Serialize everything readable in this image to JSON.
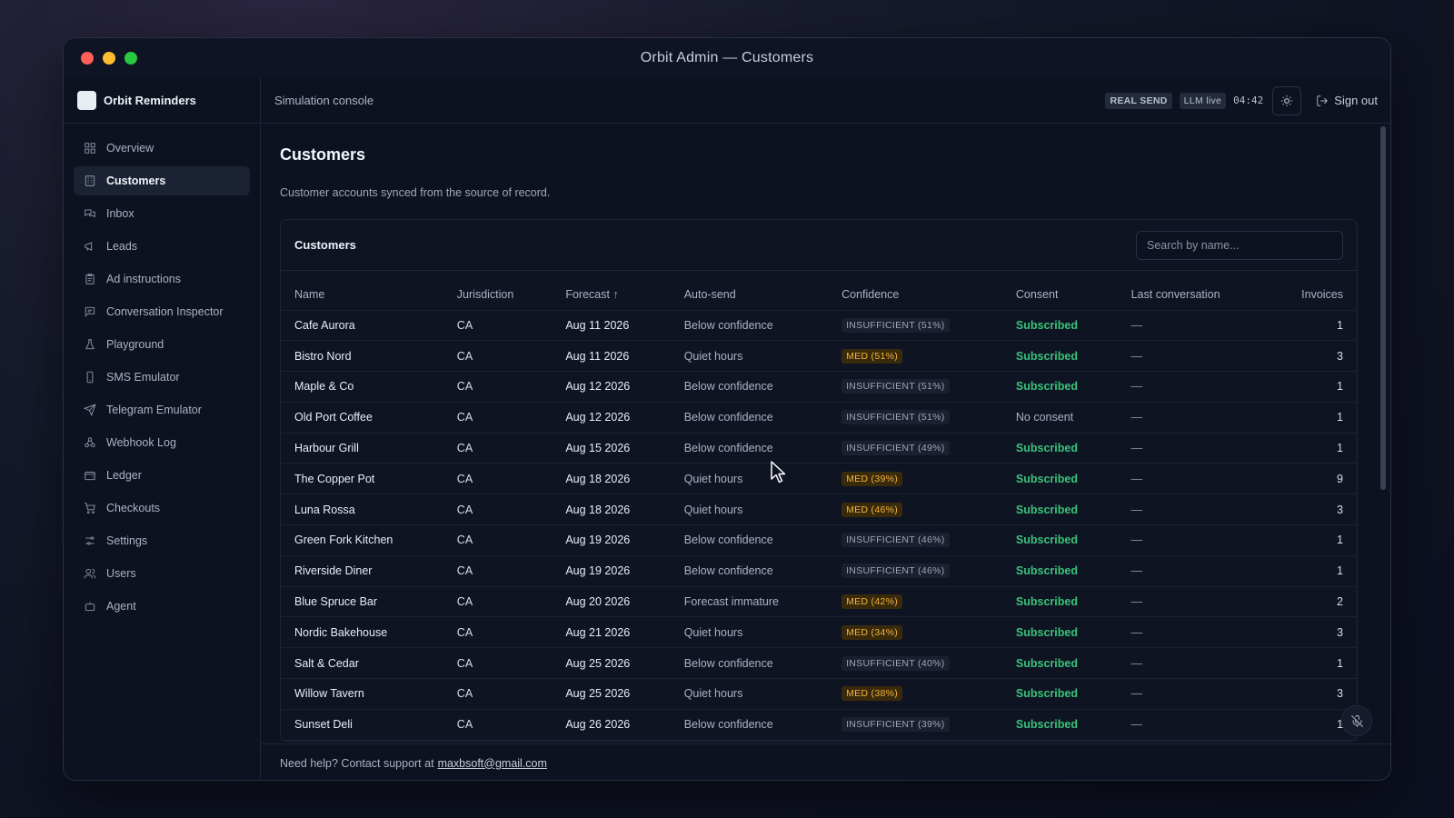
{
  "window": {
    "title": "Orbit Admin — Customers"
  },
  "brand": {
    "name": "Orbit Reminders"
  },
  "sidebar": {
    "items": [
      {
        "label": "Overview",
        "icon": "grid-icon",
        "active": false
      },
      {
        "label": "Customers",
        "icon": "building-icon",
        "active": true
      },
      {
        "label": "Inbox",
        "icon": "chat-bubbles-icon",
        "active": false
      },
      {
        "label": "Leads",
        "icon": "megaphone-icon",
        "active": false
      },
      {
        "label": "Ad instructions",
        "icon": "clipboard-icon",
        "active": false
      },
      {
        "label": "Conversation Inspector",
        "icon": "message-square-icon",
        "active": false
      },
      {
        "label": "Playground",
        "icon": "flask-icon",
        "active": false
      },
      {
        "label": "SMS Emulator",
        "icon": "phone-icon",
        "active": false
      },
      {
        "label": "Telegram Emulator",
        "icon": "send-icon",
        "active": false
      },
      {
        "label": "Webhook Log",
        "icon": "webhook-icon",
        "active": false
      },
      {
        "label": "Ledger",
        "icon": "wallet-icon",
        "active": false
      },
      {
        "label": "Checkouts",
        "icon": "cart-icon",
        "active": false
      },
      {
        "label": "Settings",
        "icon": "sliders-icon",
        "active": false
      },
      {
        "label": "Users",
        "icon": "users-icon",
        "active": false
      },
      {
        "label": "Agent",
        "icon": "bot-icon",
        "active": false
      }
    ]
  },
  "topbar": {
    "breadcrumb": "Simulation console",
    "real_send": "REAL SEND",
    "llm": "LLM live",
    "clock": "04:42",
    "theme_icon": "sun-icon",
    "signout": "Sign out"
  },
  "page": {
    "title": "Customers",
    "subtitle": "Customer accounts synced from the source of record."
  },
  "card": {
    "title": "Customers",
    "search_placeholder": "Search by name..."
  },
  "table": {
    "columns": [
      "Name",
      "Jurisdiction",
      "Forecast ↑",
      "Auto-send",
      "Confidence",
      "Consent",
      "Last conversation",
      "Invoices"
    ],
    "rows": [
      {
        "name": "Cafe Aurora",
        "jurisdiction": "CA",
        "forecast": "Aug 11 2026",
        "autosend": "Below confidence",
        "confidence": "INSUFFICIENT (51%)",
        "conf_level": "insufficient",
        "consent": "Subscribed",
        "last": "—",
        "invoices": "1"
      },
      {
        "name": "Bistro Nord",
        "jurisdiction": "CA",
        "forecast": "Aug 11 2026",
        "autosend": "Quiet hours",
        "confidence": "MED (51%)",
        "conf_level": "med",
        "consent": "Subscribed",
        "last": "—",
        "invoices": "3"
      },
      {
        "name": "Maple & Co",
        "jurisdiction": "CA",
        "forecast": "Aug 12 2026",
        "autosend": "Below confidence",
        "confidence": "INSUFFICIENT (51%)",
        "conf_level": "insufficient",
        "consent": "Subscribed",
        "last": "—",
        "invoices": "1"
      },
      {
        "name": "Old Port Coffee",
        "jurisdiction": "CA",
        "forecast": "Aug 12 2026",
        "autosend": "Below confidence",
        "confidence": "INSUFFICIENT (51%)",
        "conf_level": "insufficient",
        "consent": "No consent",
        "last": "—",
        "invoices": "1"
      },
      {
        "name": "Harbour Grill",
        "jurisdiction": "CA",
        "forecast": "Aug 15 2026",
        "autosend": "Below confidence",
        "confidence": "INSUFFICIENT (49%)",
        "conf_level": "insufficient",
        "consent": "Subscribed",
        "last": "—",
        "invoices": "1"
      },
      {
        "name": "The Copper Pot",
        "jurisdiction": "CA",
        "forecast": "Aug 18 2026",
        "autosend": "Quiet hours",
        "confidence": "MED (39%)",
        "conf_level": "med",
        "consent": "Subscribed",
        "last": "—",
        "invoices": "9"
      },
      {
        "name": "Luna Rossa",
        "jurisdiction": "CA",
        "forecast": "Aug 18 2026",
        "autosend": "Quiet hours",
        "confidence": "MED (46%)",
        "conf_level": "med",
        "consent": "Subscribed",
        "last": "—",
        "invoices": "3"
      },
      {
        "name": "Green Fork Kitchen",
        "jurisdiction": "CA",
        "forecast": "Aug 19 2026",
        "autosend": "Below confidence",
        "confidence": "INSUFFICIENT (46%)",
        "conf_level": "insufficient",
        "consent": "Subscribed",
        "last": "—",
        "invoices": "1"
      },
      {
        "name": "Riverside Diner",
        "jurisdiction": "CA",
        "forecast": "Aug 19 2026",
        "autosend": "Below confidence",
        "confidence": "INSUFFICIENT (46%)",
        "conf_level": "insufficient",
        "consent": "Subscribed",
        "last": "—",
        "invoices": "1"
      },
      {
        "name": "Blue Spruce Bar",
        "jurisdiction": "CA",
        "forecast": "Aug 20 2026",
        "autosend": "Forecast immature",
        "confidence": "MED (42%)",
        "conf_level": "med",
        "consent": "Subscribed",
        "last": "—",
        "invoices": "2"
      },
      {
        "name": "Nordic Bakehouse",
        "jurisdiction": "CA",
        "forecast": "Aug 21 2026",
        "autosend": "Quiet hours",
        "confidence": "MED (34%)",
        "conf_level": "med",
        "consent": "Subscribed",
        "last": "—",
        "invoices": "3"
      },
      {
        "name": "Salt & Cedar",
        "jurisdiction": "CA",
        "forecast": "Aug 25 2026",
        "autosend": "Below confidence",
        "confidence": "INSUFFICIENT (40%)",
        "conf_level": "insufficient",
        "consent": "Subscribed",
        "last": "—",
        "invoices": "1"
      },
      {
        "name": "Willow Tavern",
        "jurisdiction": "CA",
        "forecast": "Aug 25 2026",
        "autosend": "Quiet hours",
        "confidence": "MED (38%)",
        "conf_level": "med",
        "consent": "Subscribed",
        "last": "—",
        "invoices": "3"
      },
      {
        "name": "Sunset Deli",
        "jurisdiction": "CA",
        "forecast": "Aug 26 2026",
        "autosend": "Below confidence",
        "confidence": "INSUFFICIENT (39%)",
        "conf_level": "insufficient",
        "consent": "Subscribed",
        "last": "—",
        "invoices": "1"
      }
    ]
  },
  "footer": {
    "text": "Need help? Contact support at",
    "email": "maxbsoft@gmail.com"
  },
  "fab": {
    "icon": "mic-off-icon"
  },
  "colors": {
    "accent_green": "#39c27a",
    "med_amber": "#f2b33a",
    "background": "#0d1220"
  }
}
